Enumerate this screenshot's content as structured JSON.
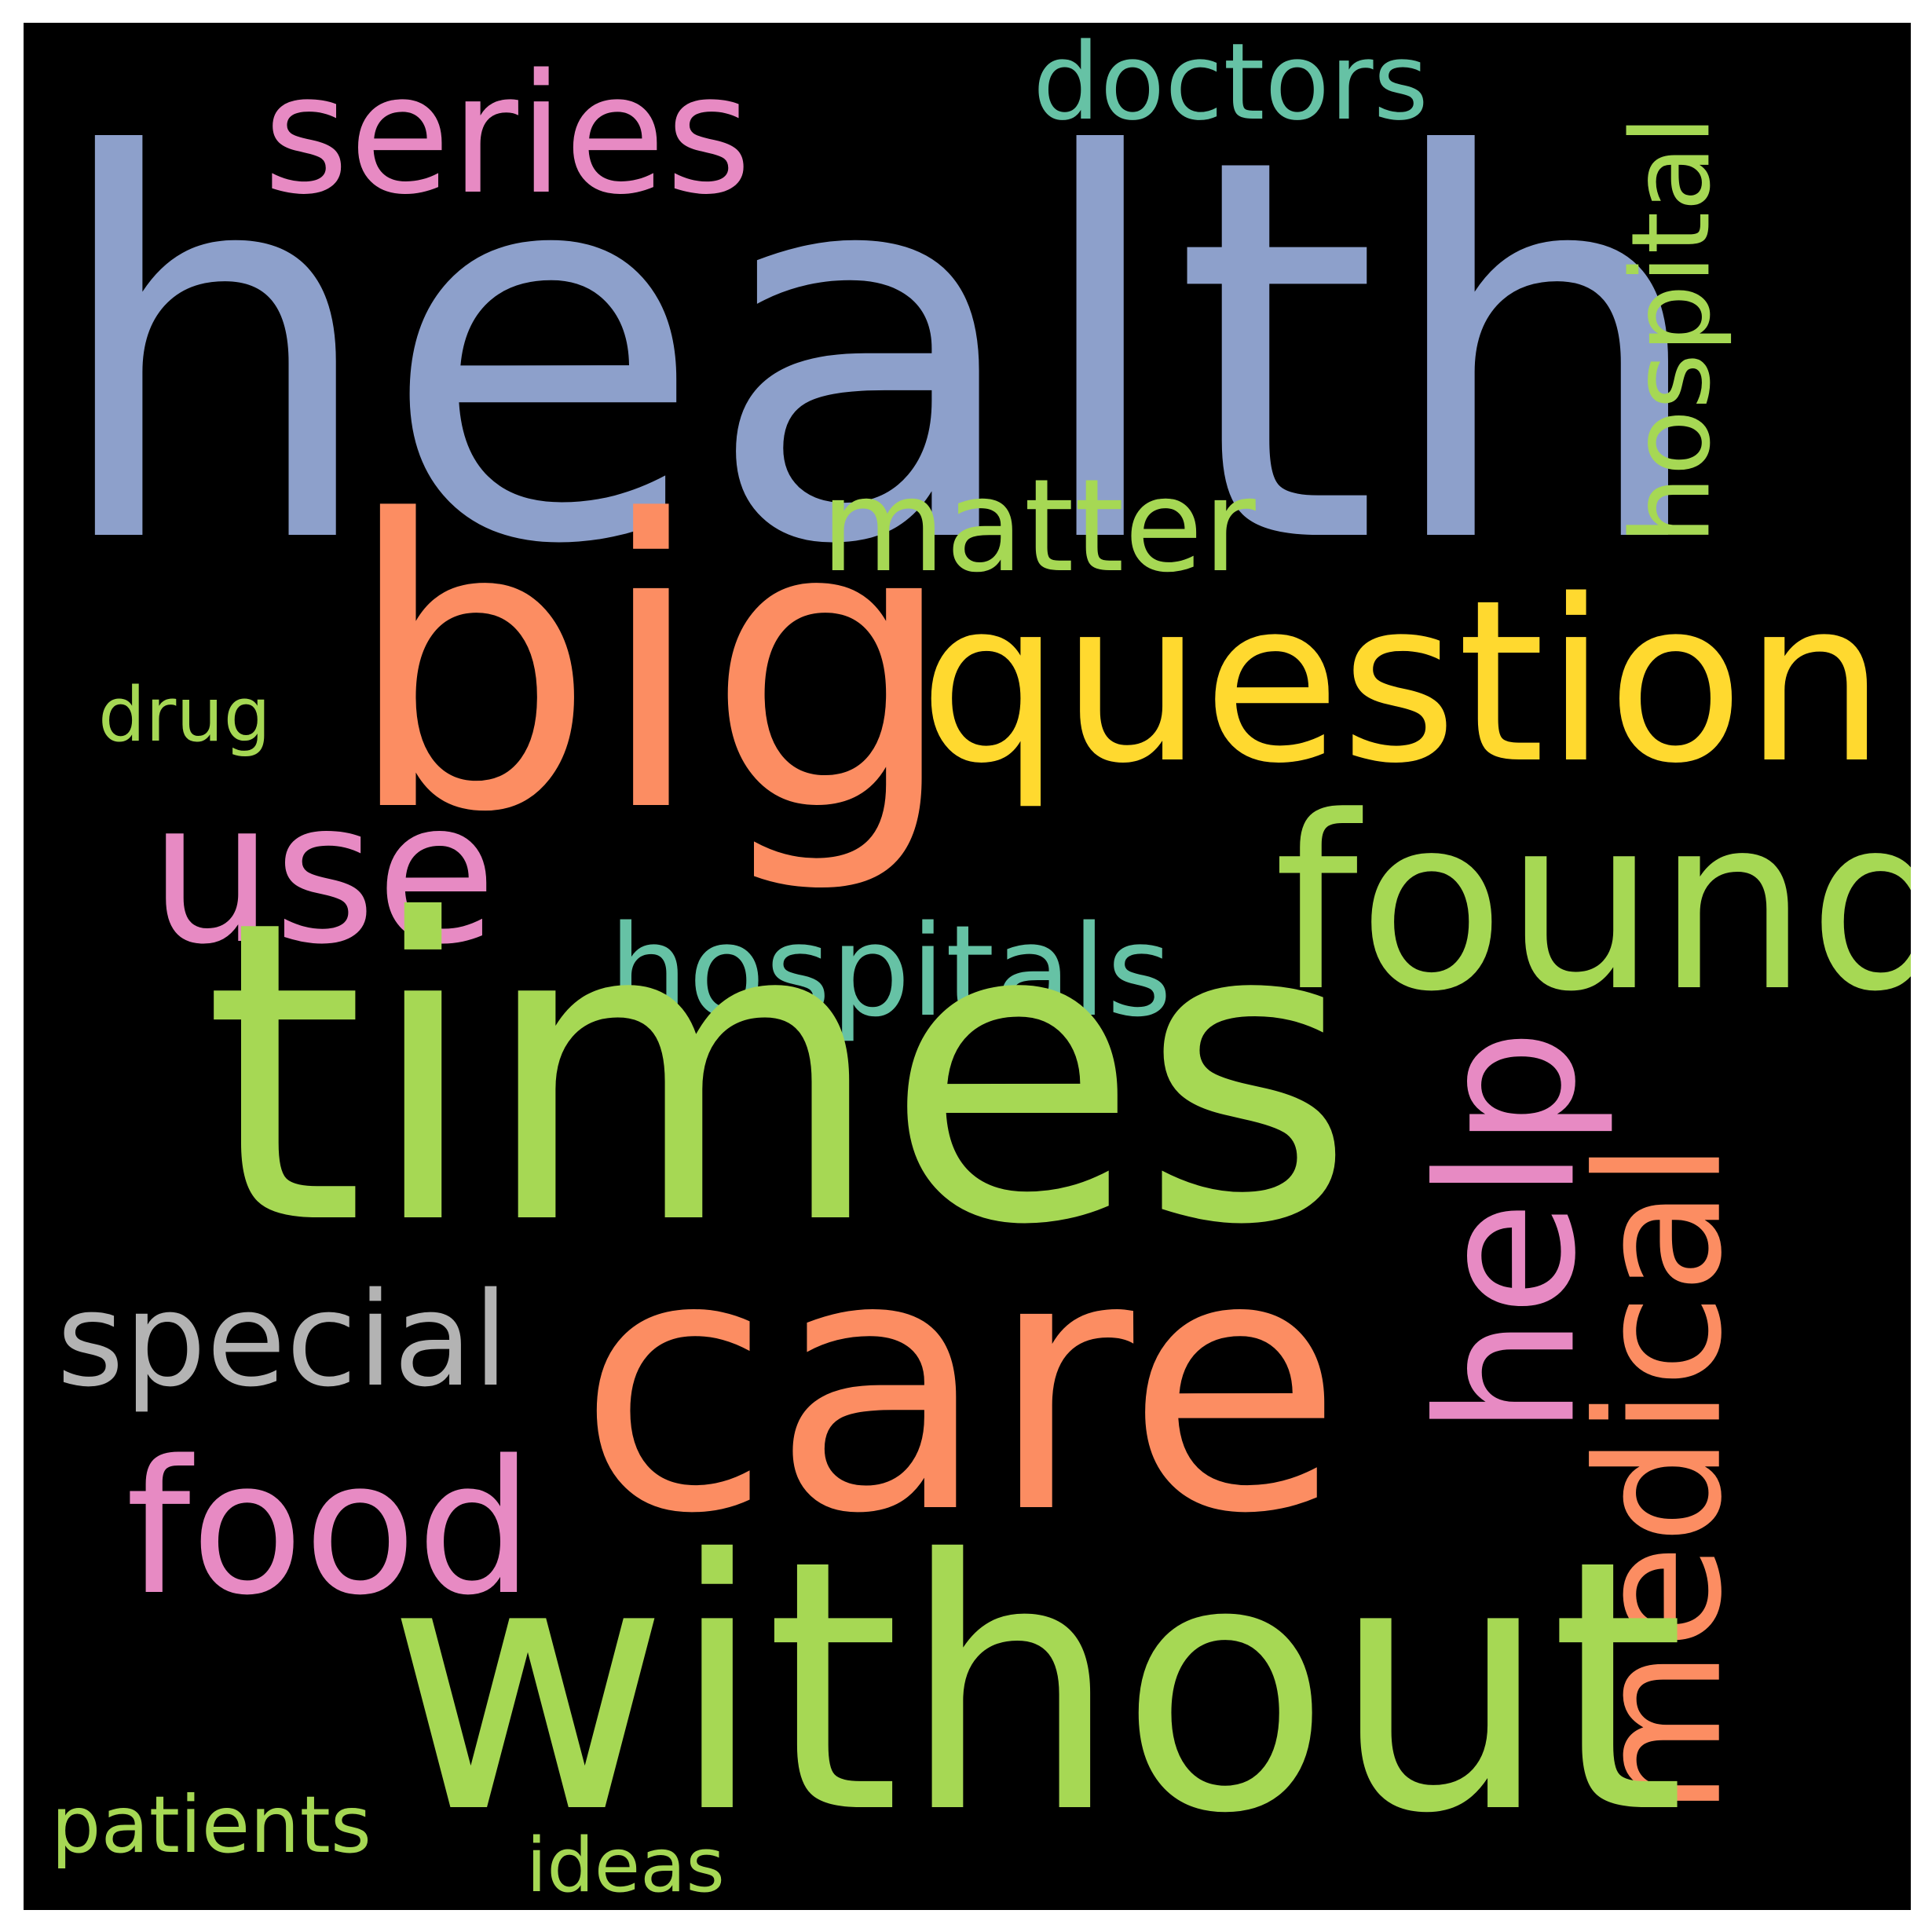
{
  "background_color": "#000000",
  "frame_color": "#ffffff",
  "words": {
    "health": {
      "text": "health",
      "color": "#8DA0CB"
    },
    "series": {
      "text": "series",
      "color": "#E78AC3"
    },
    "doctors": {
      "text": "doctors",
      "color": "#66C2A5"
    },
    "hospital": {
      "text": "hospital",
      "color": "#A6D854",
      "orientation": "vertical"
    },
    "matter": {
      "text": "matter",
      "color": "#A6D854"
    },
    "big": {
      "text": "big",
      "color": "#FC8D62"
    },
    "question": {
      "text": "question",
      "color": "#FFD92F"
    },
    "drug": {
      "text": "drug",
      "color": "#A6D854"
    },
    "use": {
      "text": "use",
      "color": "#E78AC3"
    },
    "found": {
      "text": "found",
      "color": "#A6D854"
    },
    "hospitals": {
      "text": "hospitals",
      "color": "#66C2A5"
    },
    "times": {
      "text": "times",
      "color": "#A6D854"
    },
    "help": {
      "text": "help",
      "color": "#E78AC3",
      "orientation": "vertical"
    },
    "medical": {
      "text": "medical",
      "color": "#FC8D62",
      "orientation": "vertical"
    },
    "special": {
      "text": "special",
      "color": "#B3B3B3"
    },
    "care": {
      "text": "care",
      "color": "#FC8D62"
    },
    "food": {
      "text": "food",
      "color": "#E78AC3"
    },
    "without": {
      "text": "without",
      "color": "#A6D854"
    },
    "patients": {
      "text": "patients",
      "color": "#A6D854"
    },
    "ideas": {
      "text": "ideas",
      "color": "#A6D854"
    }
  }
}
